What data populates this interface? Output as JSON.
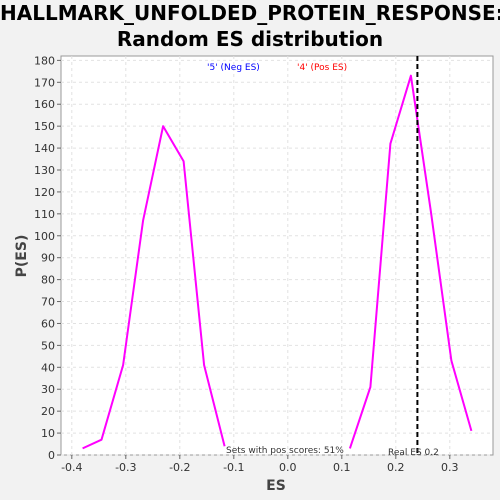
{
  "title_line1": "HALLMARK_UNFOLDED_PROTEIN_RESPONSE:",
  "title_line2": "Random ES distribution",
  "chart_data": {
    "type": "line",
    "title": "HALLMARK_UNFOLDED_PROTEIN_RESPONSE: Random ES distribution",
    "xlabel": "ES",
    "ylabel": "P(ES)",
    "xlim": [
      -0.42,
      0.38
    ],
    "ylim": [
      0,
      182
    ],
    "xticks": [
      -0.4,
      -0.3,
      -0.2,
      -0.1,
      0.0,
      0.1,
      0.2,
      0.3
    ],
    "xtick_labels": [
      "-0.4",
      "-0.3",
      "-0.2",
      "-0.1",
      "0.0",
      "0.1",
      "0.2",
      "0.3"
    ],
    "yticks": [
      0,
      10,
      20,
      30,
      40,
      50,
      60,
      70,
      80,
      90,
      100,
      110,
      120,
      130,
      140,
      150,
      160,
      170,
      180
    ],
    "grid": true,
    "series": [
      {
        "color": "#ff00ff",
        "x": [
          -0.38,
          -0.345,
          -0.305,
          -0.268,
          -0.231,
          -0.193,
          -0.155,
          -0.117
        ],
        "y": [
          3,
          7,
          41,
          107,
          150,
          134,
          41,
          4
        ]
      },
      {
        "color": "#ff00ff",
        "x": [
          0.115,
          0.153,
          0.19,
          0.228,
          0.265,
          0.303,
          0.34
        ],
        "y": [
          3,
          31,
          142,
          173,
          111,
          43,
          11
        ]
      }
    ],
    "reference_line": {
      "x": 0.24,
      "color": "#000000",
      "style": "dashed"
    },
    "annotations": {
      "neg_label": "'5' (Neg ES)",
      "neg_color": "#0000ff",
      "pos_label": "'4' (Pos ES)",
      "pos_color": "#ff0000",
      "sets_text": "Sets with pos scores: 51%",
      "real_es_text": "Real ES 0.2"
    }
  }
}
